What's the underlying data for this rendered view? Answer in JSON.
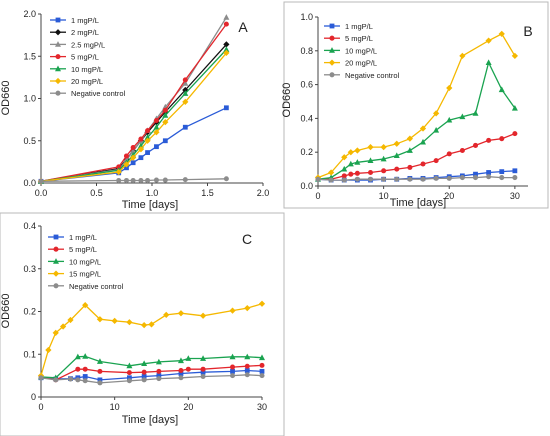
{
  "chart_data": [
    {
      "panel_label": "A",
      "type": "line",
      "xlabel": "Time [days]",
      "ylabel": "OD660",
      "xlim": [
        0.0,
        2.0
      ],
      "ylim": [
        0.0,
        2.0
      ],
      "xticks": [
        0.0,
        0.5,
        1.0,
        1.5,
        2.0
      ],
      "xtick_labels": [
        "0.0",
        "0.5",
        "1.0",
        "1.5",
        "2.0"
      ],
      "yticks": [
        0.0,
        0.5,
        1.0,
        1.5,
        2.0
      ],
      "ytick_labels": [
        "0.0",
        "0.5",
        "1.0",
        "1.5",
        "2.0"
      ],
      "grid": false,
      "legend_position": "top-left",
      "series": [
        {
          "name": "1 mgP/L",
          "color": "#2a5bd7",
          "marker": "square",
          "x": [
            0,
            0.7,
            0.77,
            0.83,
            0.9,
            0.96,
            1.04,
            1.12,
            1.3,
            1.67
          ],
          "y": [
            0.02,
            0.12,
            0.18,
            0.24,
            0.3,
            0.36,
            0.43,
            0.5,
            0.66,
            0.89
          ]
        },
        {
          "name": "2 mgP/L",
          "color": "#111111",
          "marker": "diamond",
          "x": [
            0,
            0.7,
            0.77,
            0.83,
            0.9,
            0.96,
            1.04,
            1.12,
            1.3,
            1.67
          ],
          "y": [
            0.02,
            0.17,
            0.28,
            0.38,
            0.5,
            0.6,
            0.72,
            0.84,
            1.1,
            1.64
          ]
        },
        {
          "name": "2.5 mgP/L",
          "color": "#8c8c8c",
          "marker": "triangle",
          "x": [
            0,
            0.7,
            0.77,
            0.83,
            0.9,
            0.96,
            1.04,
            1.12,
            1.3,
            1.67
          ],
          "y": [
            0.02,
            0.16,
            0.27,
            0.38,
            0.5,
            0.62,
            0.76,
            0.9,
            1.18,
            1.96
          ]
        },
        {
          "name": "5 mgP/L",
          "color": "#e3262c",
          "marker": "circle",
          "x": [
            0,
            0.7,
            0.77,
            0.83,
            0.9,
            0.96,
            1.04,
            1.12,
            1.3,
            1.67
          ],
          "y": [
            0.02,
            0.19,
            0.32,
            0.42,
            0.52,
            0.62,
            0.74,
            0.86,
            1.22,
            1.88
          ]
        },
        {
          "name": "10 mgP/L",
          "color": "#1aa350",
          "marker": "triangle",
          "x": [
            0,
            0.7,
            0.77,
            0.83,
            0.9,
            0.96,
            1.04,
            1.12,
            1.3,
            1.67
          ],
          "y": [
            0.02,
            0.15,
            0.24,
            0.33,
            0.44,
            0.54,
            0.66,
            0.8,
            1.06,
            1.58
          ]
        },
        {
          "name": "20 mgP/L",
          "color": "#f5b800",
          "marker": "diamond",
          "x": [
            0,
            0.7,
            0.77,
            0.83,
            0.9,
            0.96,
            1.04,
            1.12,
            1.3,
            1.67
          ],
          "y": [
            0.02,
            0.13,
            0.22,
            0.3,
            0.4,
            0.5,
            0.6,
            0.72,
            0.96,
            1.54
          ]
        },
        {
          "name": "Negative control",
          "color": "#8c8c8c",
          "marker": "circle",
          "x": [
            0,
            0.7,
            0.77,
            0.83,
            0.9,
            0.96,
            1.04,
            1.12,
            1.3,
            1.67
          ],
          "y": [
            0.02,
            0.03,
            0.03,
            0.03,
            0.03,
            0.03,
            0.035,
            0.035,
            0.04,
            0.05
          ]
        }
      ]
    },
    {
      "panel_label": "B",
      "type": "line",
      "xlabel": "Time [days]",
      "ylabel": "OD660",
      "xlim": [
        0,
        32
      ],
      "ylim": [
        0.0,
        1.0
      ],
      "xticks": [
        0,
        10,
        20,
        30
      ],
      "xtick_labels": [
        "0",
        "10",
        "20",
        "30"
      ],
      "yticks": [
        0.0,
        0.2,
        0.4,
        0.6,
        0.8,
        1.0
      ],
      "ytick_labels": [
        "0.0",
        "0.2",
        "0.4",
        "0.6",
        "0.8",
        "1.0"
      ],
      "grid": false,
      "legend_position": "top-left",
      "series": [
        {
          "name": "1 mgP/L",
          "color": "#2a5bd7",
          "marker": "square",
          "x": [
            0,
            2,
            4,
            6,
            8,
            10,
            12,
            14,
            16,
            18,
            20,
            22,
            24,
            26,
            28,
            30
          ],
          "y": [
            0.04,
            0.035,
            0.035,
            0.035,
            0.035,
            0.04,
            0.04,
            0.045,
            0.045,
            0.05,
            0.055,
            0.06,
            0.07,
            0.08,
            0.085,
            0.09
          ]
        },
        {
          "name": "5 mgP/L",
          "color": "#e3262c",
          "marker": "circle",
          "x": [
            0,
            2,
            4,
            5,
            6,
            8,
            10,
            12,
            14,
            16,
            18,
            20,
            22,
            24,
            26,
            28,
            30
          ],
          "y": [
            0.04,
            0.04,
            0.06,
            0.07,
            0.075,
            0.08,
            0.09,
            0.1,
            0.11,
            0.13,
            0.15,
            0.19,
            0.21,
            0.24,
            0.27,
            0.28,
            0.31
          ]
        },
        {
          "name": "10 mgP/L",
          "color": "#1aa350",
          "marker": "triangle",
          "x": [
            0,
            2,
            4,
            5,
            6,
            8,
            10,
            12,
            14,
            16,
            18,
            20,
            22,
            24,
            26,
            28,
            30
          ],
          "y": [
            0.04,
            0.05,
            0.1,
            0.13,
            0.14,
            0.15,
            0.16,
            0.18,
            0.21,
            0.26,
            0.33,
            0.39,
            0.41,
            0.43,
            0.73,
            0.57,
            0.46
          ]
        },
        {
          "name": "20 mgP/L",
          "color": "#f5b800",
          "marker": "diamond",
          "x": [
            0,
            2,
            4,
            5,
            6,
            8,
            10,
            12,
            14,
            16,
            18,
            20,
            22,
            26,
            28,
            30
          ],
          "y": [
            0.05,
            0.08,
            0.17,
            0.2,
            0.21,
            0.23,
            0.23,
            0.25,
            0.28,
            0.34,
            0.43,
            0.58,
            0.77,
            0.86,
            0.9,
            0.77
          ]
        },
        {
          "name": "Negative control",
          "color": "#8c8c8c",
          "marker": "circle",
          "x": [
            0,
            2,
            4,
            6,
            8,
            10,
            12,
            14,
            16,
            18,
            20,
            22,
            24,
            26,
            28,
            30
          ],
          "y": [
            0.04,
            0.035,
            0.035,
            0.04,
            0.04,
            0.04,
            0.04,
            0.04,
            0.04,
            0.045,
            0.045,
            0.05,
            0.05,
            0.055,
            0.05,
            0.05
          ]
        }
      ]
    },
    {
      "panel_label": "C",
      "type": "line",
      "xlabel": "Time [days]",
      "ylabel": "OD660",
      "xlim": [
        0,
        30
      ],
      "ylim": [
        0.0,
        0.4
      ],
      "xticks": [
        0,
        10,
        20,
        30
      ],
      "xtick_labels": [
        "0",
        "10",
        "20",
        "30"
      ],
      "yticks": [
        0.0,
        0.1,
        0.2,
        0.3,
        0.4
      ],
      "ytick_labels": [
        "0",
        "0.1",
        "0.2",
        "0.3",
        "0.4"
      ],
      "grid": false,
      "legend_position": "top-left",
      "series": [
        {
          "name": "1 mgP/L",
          "color": "#2a5bd7",
          "marker": "square",
          "x": [
            0,
            2,
            4,
            5,
            6,
            8,
            12,
            14,
            16,
            19,
            22,
            26,
            28,
            30
          ],
          "y": [
            0.045,
            0.042,
            0.043,
            0.045,
            0.048,
            0.04,
            0.045,
            0.048,
            0.05,
            0.055,
            0.058,
            0.06,
            0.062,
            0.06
          ]
        },
        {
          "name": "5 mgP/L",
          "color": "#e3262c",
          "marker": "circle",
          "x": [
            0,
            2,
            5,
            6,
            8,
            12,
            14,
            16,
            19,
            20,
            22,
            26,
            28,
            30
          ],
          "y": [
            0.047,
            0.04,
            0.065,
            0.065,
            0.06,
            0.057,
            0.058,
            0.06,
            0.062,
            0.065,
            0.065,
            0.07,
            0.072,
            0.074
          ]
        },
        {
          "name": "10 mgP/L",
          "color": "#1aa350",
          "marker": "triangle",
          "x": [
            0,
            2,
            5,
            6,
            8,
            12,
            14,
            16,
            19,
            20,
            22,
            26,
            28,
            30
          ],
          "y": [
            0.047,
            0.045,
            0.094,
            0.095,
            0.083,
            0.073,
            0.078,
            0.082,
            0.085,
            0.09,
            0.09,
            0.094,
            0.094,
            0.092
          ]
        },
        {
          "name": "15 mgP/L",
          "color": "#f5b800",
          "marker": "diamond",
          "x": [
            0,
            1,
            2,
            3,
            4,
            6,
            8,
            10,
            12,
            14,
            15,
            17,
            19,
            22,
            26,
            28,
            30
          ],
          "y": [
            0.05,
            0.11,
            0.15,
            0.165,
            0.18,
            0.215,
            0.182,
            0.178,
            0.175,
            0.168,
            0.17,
            0.192,
            0.196,
            0.19,
            0.202,
            0.208,
            0.218
          ]
        },
        {
          "name": "Negative control",
          "color": "#8c8c8c",
          "marker": "circle",
          "x": [
            0,
            2,
            4,
            5,
            6,
            8,
            12,
            14,
            16,
            19,
            22,
            26,
            28,
            30
          ],
          "y": [
            0.045,
            0.04,
            0.042,
            0.04,
            0.038,
            0.033,
            0.038,
            0.04,
            0.043,
            0.045,
            0.048,
            0.05,
            0.052,
            0.05
          ]
        }
      ]
    }
  ]
}
